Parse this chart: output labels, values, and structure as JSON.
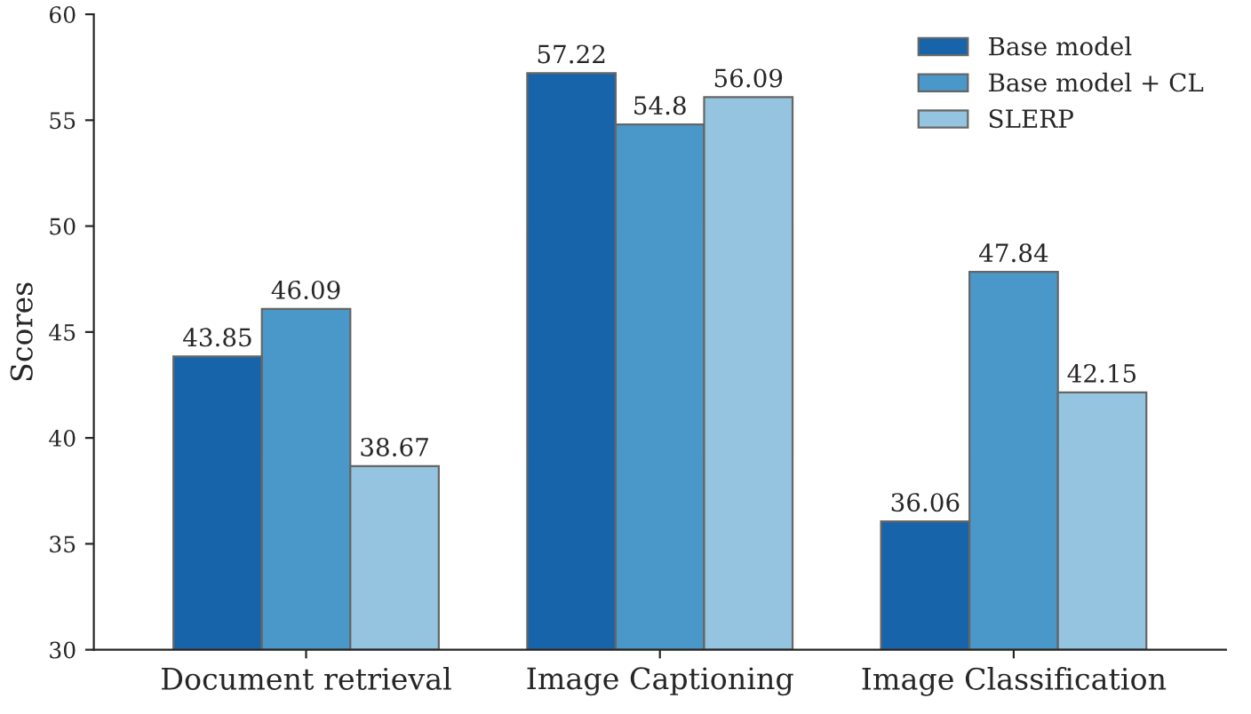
{
  "chart_data": {
    "type": "bar",
    "ylabel": "Scores",
    "categories": [
      "Document retrieval",
      "Image Captioning",
      "Image Classification"
    ],
    "series": [
      {
        "name": "Base model",
        "color": "#1764ab",
        "values": [
          43.85,
          57.22,
          36.06
        ]
      },
      {
        "name": "Base model + CL",
        "color": "#4a98c9",
        "values": [
          46.09,
          54.8,
          47.84
        ]
      },
      {
        "name": "SLERP",
        "color": "#94c4df",
        "values": [
          38.67,
          56.09,
          42.15
        ]
      }
    ],
    "ylim": [
      30,
      60
    ],
    "yticks": [
      30,
      35,
      40,
      45,
      50,
      55,
      60
    ],
    "data_labels": true,
    "legend": "top right",
    "grid": false
  }
}
